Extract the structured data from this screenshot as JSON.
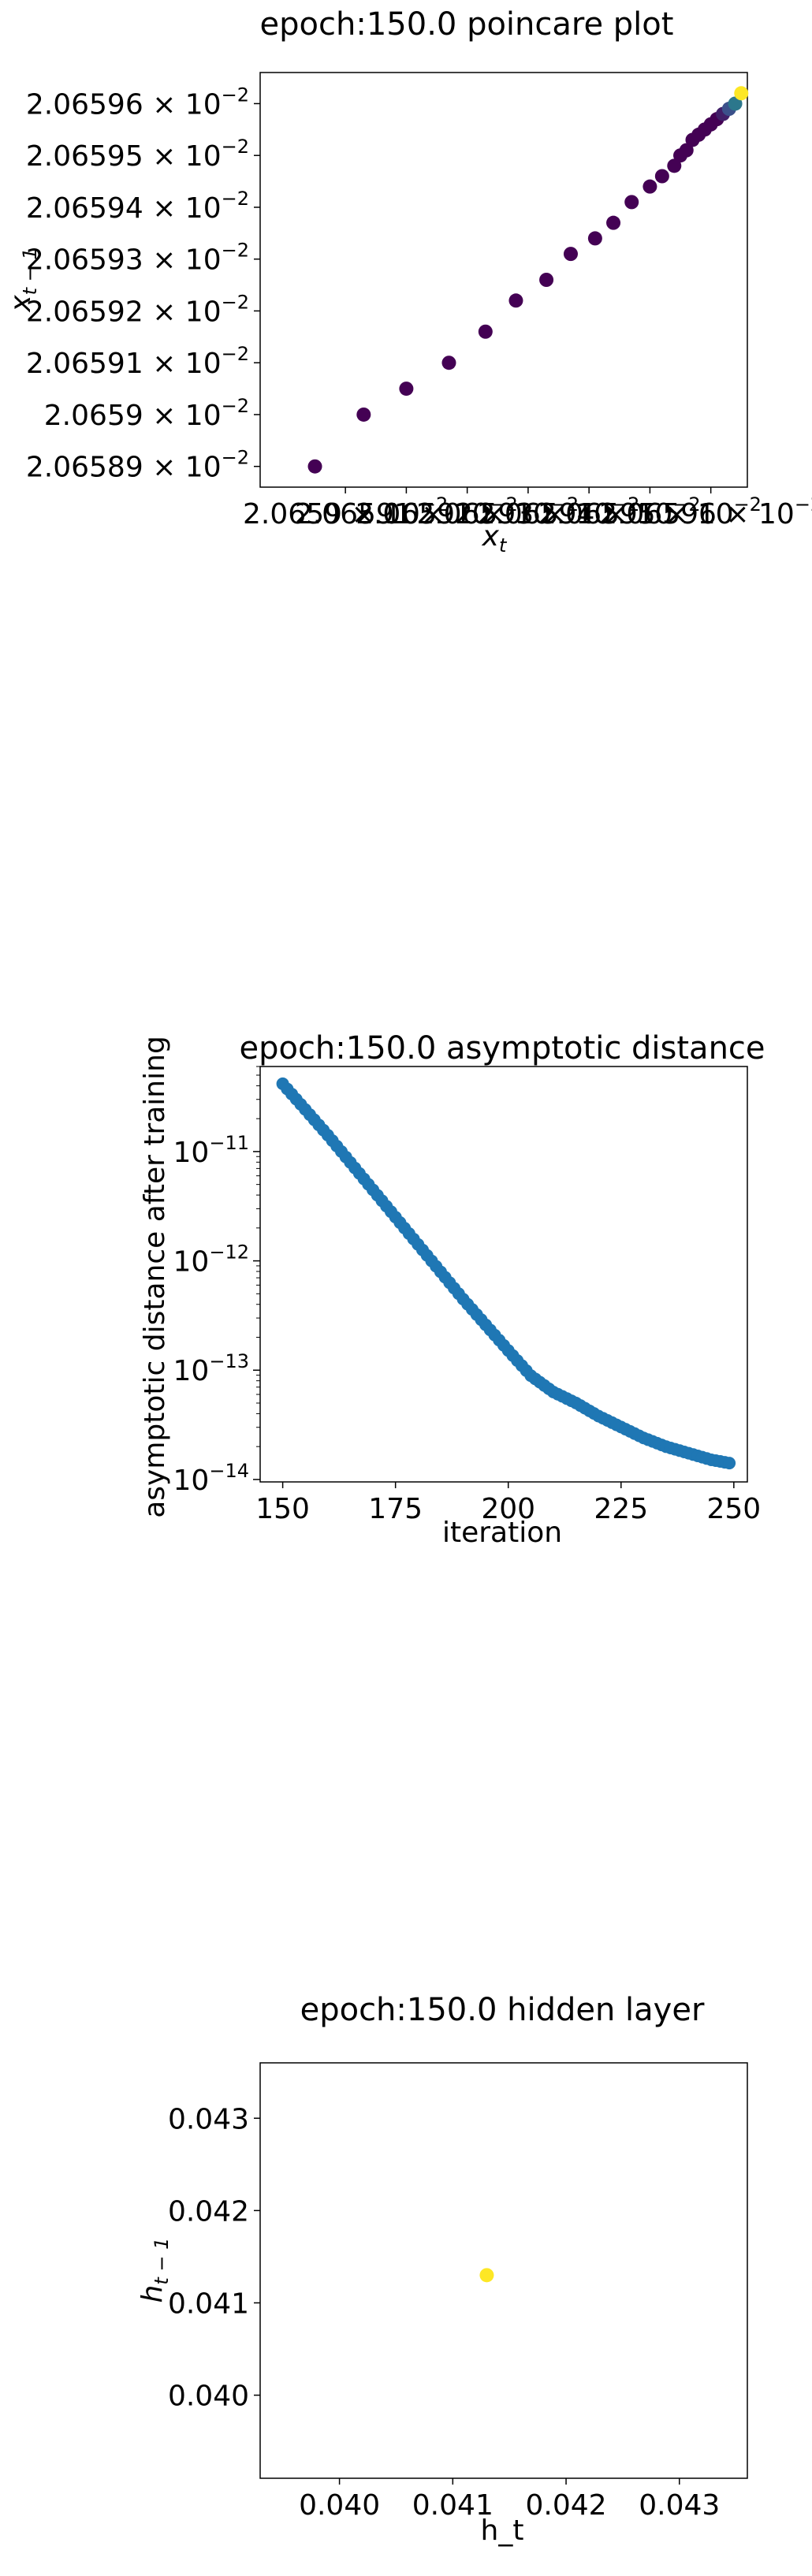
{
  "colors": {
    "viridis_start": "#440154",
    "viridis_mid": "#3b528b",
    "viridis_teal": "#21918c",
    "viridis_end": "#fde725",
    "scatter_blue": "#1f77b4",
    "axes": "#000000"
  },
  "chart_data": [
    {
      "type": "scatter",
      "title": "epoch:150.0 poincare plot",
      "xlabel": "x_t",
      "ylabel": "x_{t-1}",
      "y_ticks": [
        {
          "v": 0.0206589,
          "mant": "2.06589",
          "exp": "-2"
        },
        {
          "v": 0.020659,
          "mant": "2.0659",
          "exp": "-2"
        },
        {
          "v": 0.0206591,
          "mant": "2.06591",
          "exp": "-2"
        },
        {
          "v": 0.0206592,
          "mant": "2.06592",
          "exp": "-2"
        },
        {
          "v": 0.0206593,
          "mant": "2.06593",
          "exp": "-2"
        },
        {
          "v": 0.0206594,
          "mant": "2.06594",
          "exp": "-2"
        },
        {
          "v": 0.0206595,
          "mant": "2.06595",
          "exp": "-2"
        },
        {
          "v": 0.0206596,
          "mant": "2.06596",
          "exp": "-2"
        }
      ],
      "x_ticks": [
        {
          "v": 0.020659,
          "mant": "2.0659",
          "exp": "-2"
        },
        {
          "v": 0.0206591,
          "mant": "2.06591",
          "exp": "-2"
        },
        {
          "v": 0.0206592,
          "mant": "2.06592",
          "exp": "-2"
        },
        {
          "v": 0.0206593,
          "mant": "2.06593",
          "exp": "-2"
        },
        {
          "v": 0.0206594,
          "mant": "2.06594",
          "exp": "-2"
        },
        {
          "v": 0.0206595,
          "mant": "2.06595",
          "exp": "-2"
        },
        {
          "v": 0.0206596,
          "mant": "2.06596",
          "exp": "-2"
        }
      ],
      "xlim": [
        0.02065886,
        0.02065966
      ],
      "ylim": [
        0.02065886,
        0.02065966
      ],
      "colormap": "viridis",
      "points": [
        {
          "x": 0.02065895,
          "y": 0.0206589
        },
        {
          "x": 0.02065903,
          "y": 0.020659
        },
        {
          "x": 0.0206591,
          "y": 0.02065905
        },
        {
          "x": 0.02065917,
          "y": 0.0206591
        },
        {
          "x": 0.02065923,
          "y": 0.02065916
        },
        {
          "x": 0.02065928,
          "y": 0.02065922
        },
        {
          "x": 0.02065933,
          "y": 0.02065926
        },
        {
          "x": 0.02065937,
          "y": 0.02065931
        },
        {
          "x": 0.02065941,
          "y": 0.02065934
        },
        {
          "x": 0.02065944,
          "y": 0.02065937
        },
        {
          "x": 0.02065947,
          "y": 0.02065941
        },
        {
          "x": 0.0206595,
          "y": 0.02065944
        },
        {
          "x": 0.02065952,
          "y": 0.02065946
        },
        {
          "x": 0.02065954,
          "y": 0.02065948
        },
        {
          "x": 0.02065955,
          "y": 0.0206595
        },
        {
          "x": 0.02065956,
          "y": 0.02065951
        },
        {
          "x": 0.02065957,
          "y": 0.02065953
        },
        {
          "x": 0.02065958,
          "y": 0.02065954
        },
        {
          "x": 0.02065959,
          "y": 0.02065955
        },
        {
          "x": 0.0206596,
          "y": 0.02065956
        },
        {
          "x": 0.02065961,
          "y": 0.02065957
        },
        {
          "x": 0.02065962,
          "y": 0.02065958
        },
        {
          "x": 0.02065963,
          "y": 0.02065959
        },
        {
          "x": 0.02065964,
          "y": 0.0206596
        },
        {
          "x": 0.02065965,
          "y": 0.02065962
        }
      ]
    },
    {
      "type": "scatter",
      "title": "epoch:150.0 asymptotic distance",
      "xlabel": "iteration",
      "ylabel": "asymptotic distance after training",
      "y_scale": "log",
      "x_ticks": [
        150,
        175,
        200,
        225,
        250
      ],
      "y_ticks": [
        {
          "v": 1e-14,
          "base": "10",
          "exp": "−14"
        },
        {
          "v": 1e-13,
          "base": "10",
          "exp": "−13"
        },
        {
          "v": 1e-12,
          "base": "10",
          "exp": "−12"
        },
        {
          "v": 1e-11,
          "base": "10",
          "exp": "−11"
        }
      ],
      "xlim": [
        145,
        253
      ],
      "ylim": [
        9.5e-15,
        6e-11
      ],
      "x_start": 150,
      "x_end": 249,
      "log10_anchors": [
        [
          150,
          -10.38
        ],
        [
          160,
          -10.85
        ],
        [
          170,
          -11.35
        ],
        [
          180,
          -11.85
        ],
        [
          190,
          -12.35
        ],
        [
          200,
          -12.82
        ],
        [
          205,
          -13.05
        ],
        [
          210,
          -13.2
        ],
        [
          215,
          -13.3
        ],
        [
          220,
          -13.42
        ],
        [
          225,
          -13.52
        ],
        [
          230,
          -13.62
        ],
        [
          235,
          -13.7
        ],
        [
          240,
          -13.76
        ],
        [
          245,
          -13.82
        ],
        [
          249,
          -13.85
        ]
      ]
    },
    {
      "type": "scatter",
      "title": "epoch:150.0 hidden layer",
      "xlabel": "h_t",
      "ylabel": "h_{t-1}",
      "x_ticks": [
        "0.040",
        "0.041",
        "0.042",
        "0.043"
      ],
      "y_ticks": [
        "0.040",
        "0.041",
        "0.042",
        "0.043"
      ],
      "xlim": [
        0.0393,
        0.0436
      ],
      "ylim": [
        0.0391,
        0.0436
      ],
      "points": [
        {
          "x": 0.0413,
          "y": 0.0413
        }
      ]
    }
  ]
}
